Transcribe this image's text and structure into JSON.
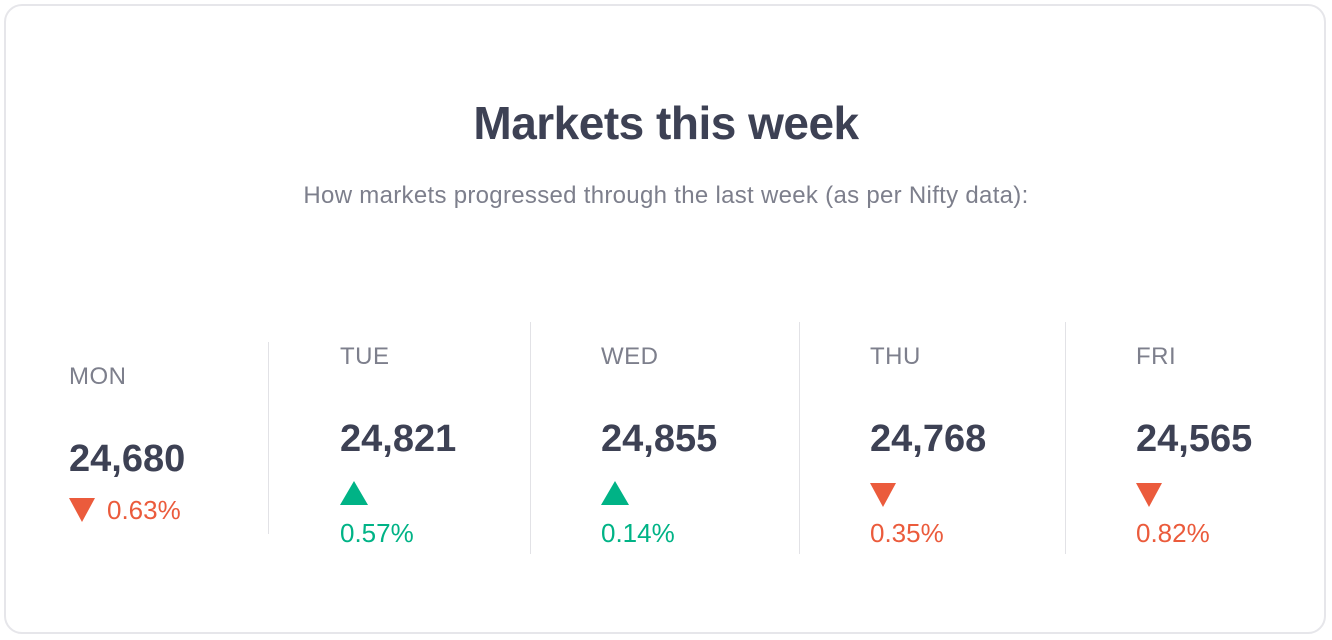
{
  "header": {
    "title": "Markets this week",
    "subtitle": "How markets progressed through the last week (as per Nifty data):"
  },
  "colors": {
    "up": "#00b386",
    "down": "#eb5b3c",
    "text_primary": "#3d4154",
    "text_secondary": "#7d7f8c"
  },
  "days": [
    {
      "label": "MON",
      "value": "24,680",
      "change": "0.63%",
      "direction": "down",
      "icon": "triangle-down-icon"
    },
    {
      "label": "TUE",
      "value": "24,821",
      "change": "0.57%",
      "direction": "up",
      "icon": "triangle-up-icon"
    },
    {
      "label": "WED",
      "value": "24,855",
      "change": "0.14%",
      "direction": "up",
      "icon": "triangle-up-icon"
    },
    {
      "label": "THU",
      "value": "24,768",
      "change": "0.35%",
      "direction": "down",
      "icon": "triangle-down-icon"
    },
    {
      "label": "FRI",
      "value": "24,565",
      "change": "0.82%",
      "direction": "down",
      "icon": "triangle-down-icon"
    }
  ]
}
